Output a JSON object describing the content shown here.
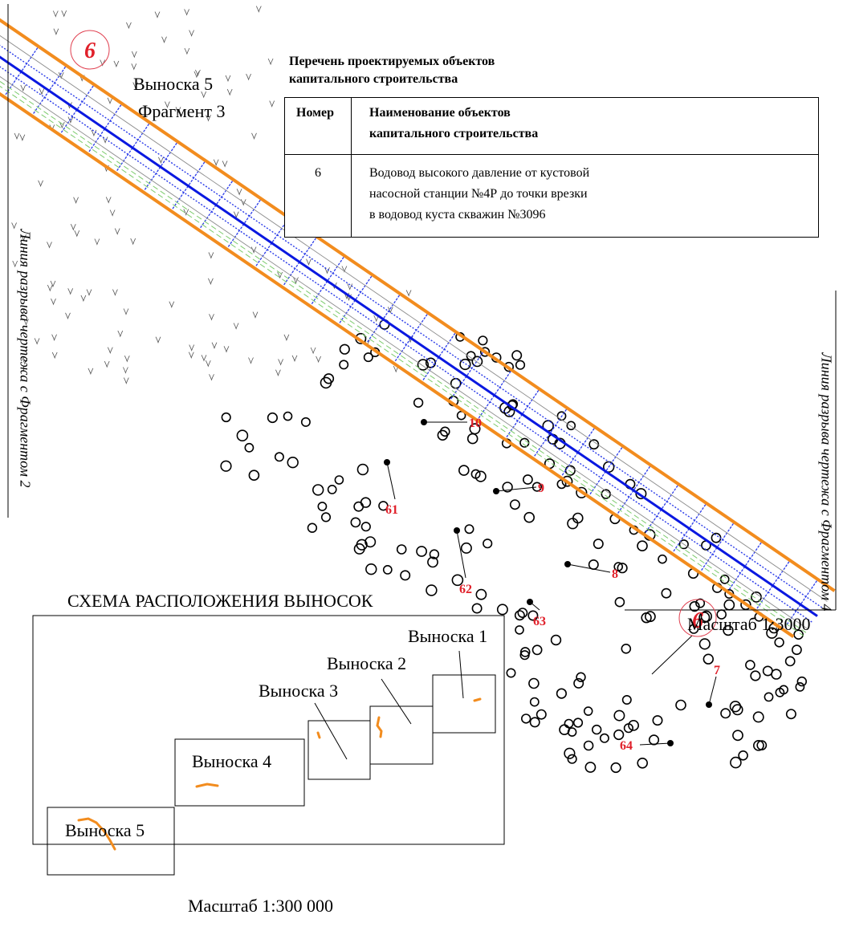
{
  "callout_title": "Выноска 5",
  "fragment_title": "Фрагмент 3",
  "objects_list": {
    "heading_line1": "Перечень проектируемых объектов",
    "heading_line2": "капитального строительства",
    "col_number": "Номер",
    "col_name_line1": "Наименование объектов",
    "col_name_line2": "капитального строительства",
    "rows": [
      {
        "number": "6",
        "name_line1": "Водовод высокого давление от кустовой",
        "name_line2": "насосной станции №4Р до точки врезки",
        "name_line3": "в водовод куста скважин №3096"
      }
    ]
  },
  "break_line_left": "Линия разрыва чертежа с Фрагментом 2",
  "break_line_right": "Линия разрыва чертежа с Фрагментом 4",
  "object_markers": [
    "6",
    "6"
  ],
  "points": [
    "10",
    "9",
    "8",
    "7",
    "61",
    "62",
    "63",
    "64"
  ],
  "scale_main": "Масштаб 1:3000",
  "scheme": {
    "title": "СХЕМА РАСПОЛОЖЕНИЯ ВЫНОСОК",
    "callouts": [
      "Выноска 1",
      "Выноска 2",
      "Выноска 3",
      "Выноска 4",
      "Выноска 5"
    ],
    "scale": "Масштаб 1:300 000"
  },
  "colors": {
    "orange_boundary": "#F28C1E",
    "pipeline_blue": "#0A18E0",
    "grid_blue": "#2A3BE8",
    "green_line": "#7CCB6C",
    "label_red": "#E0202A",
    "marker_circle_red": "#E04050"
  }
}
